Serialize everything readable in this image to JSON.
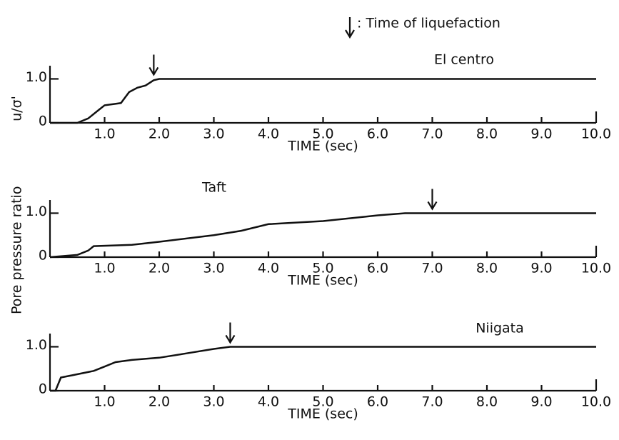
{
  "note": ": Time of liquefaction",
  "ylabel_main": "Pore pressure ratio",
  "ylabel_symbol": "u/σ'",
  "chart_data": [
    {
      "type": "line",
      "name": "El centro",
      "xlabel": "TIME (sec)",
      "x": [
        0,
        0.5,
        0.7,
        0.9,
        1.0,
        1.3,
        1.45,
        1.6,
        1.75,
        1.9,
        2.0,
        10
      ],
      "values": [
        0,
        0,
        0.1,
        0.3,
        0.4,
        0.45,
        0.7,
        0.8,
        0.85,
        0.97,
        1.0,
        1.0
      ],
      "liquefaction_time": 1.9,
      "xlim": [
        0,
        10
      ],
      "xticks": [
        {
          "value": 1,
          "label": "1.0"
        },
        {
          "value": 2,
          "label": "2.0"
        },
        {
          "value": 3,
          "label": "3.0"
        },
        {
          "value": 4,
          "label": "4.0"
        },
        {
          "value": 5,
          "label": "5.0"
        },
        {
          "value": 6,
          "label": "6.0"
        },
        {
          "value": 7,
          "label": "7.0"
        },
        {
          "value": 8,
          "label": "8.0"
        },
        {
          "value": 9,
          "label": "9.0"
        },
        {
          "value": 10,
          "label": "10.0"
        }
      ],
      "ylim": [
        0,
        1.3
      ],
      "yticks": [
        0,
        {
          "value": 1,
          "label": "1.0"
        }
      ],
      "color": "#111"
    },
    {
      "type": "line",
      "name": "Taft",
      "xlabel": "TIME (sec)",
      "x": [
        0,
        0.5,
        0.7,
        0.8,
        1.5,
        2,
        3,
        3.5,
        4,
        5,
        6,
        6.5,
        7,
        10
      ],
      "values": [
        0,
        0.05,
        0.15,
        0.25,
        0.28,
        0.35,
        0.5,
        0.6,
        0.75,
        0.82,
        0.95,
        1.0,
        1.0,
        1.0
      ],
      "liquefaction_time": 7.0,
      "xlim": [
        0,
        10
      ],
      "xticks": [
        {
          "value": 1,
          "label": "1.0"
        },
        {
          "value": 2,
          "label": "2.0"
        },
        {
          "value": 3,
          "label": "3.0"
        },
        {
          "value": 4,
          "label": "4.0"
        },
        {
          "value": 5,
          "label": "5.0"
        },
        {
          "value": 6,
          "label": "6.0"
        },
        {
          "value": 7,
          "label": "7.0"
        },
        {
          "value": 8,
          "label": "8.0"
        },
        {
          "value": 9,
          "label": "9.0"
        },
        {
          "value": 10,
          "label": "10.0"
        }
      ],
      "ylim": [
        0,
        1.3
      ],
      "yticks": [
        0,
        {
          "value": 1,
          "label": "1.0"
        }
      ],
      "color": "#111"
    },
    {
      "type": "line",
      "name": "Niigata",
      "xlabel": "TIME (sec)",
      "x": [
        0,
        0.1,
        0.2,
        0.4,
        0.8,
        1.0,
        1.2,
        1.5,
        2.0,
        2.5,
        3.0,
        3.3,
        10
      ],
      "values": [
        0,
        0,
        0.3,
        0.35,
        0.45,
        0.55,
        0.65,
        0.7,
        0.75,
        0.85,
        0.95,
        1.0,
        1.0
      ],
      "liquefaction_time": 3.3,
      "xlim": [
        0,
        10
      ],
      "xticks": [
        {
          "value": 1,
          "label": "1.0"
        },
        {
          "value": 2,
          "label": "2.0"
        },
        {
          "value": 3,
          "label": "3.0"
        },
        {
          "value": 4,
          "label": "4.0"
        },
        {
          "value": 5,
          "label": "5.0"
        },
        {
          "value": 6,
          "label": "6.0"
        },
        {
          "value": 7,
          "label": "7.0"
        },
        {
          "value": 8,
          "label": "8.0"
        },
        {
          "value": 9,
          "label": "9.0"
        },
        {
          "value": 10,
          "label": "10.0"
        }
      ],
      "ylim": [
        0,
        1.3
      ],
      "yticks": [
        0,
        {
          "value": 1,
          "label": "1.0"
        }
      ],
      "color": "#111"
    }
  ]
}
